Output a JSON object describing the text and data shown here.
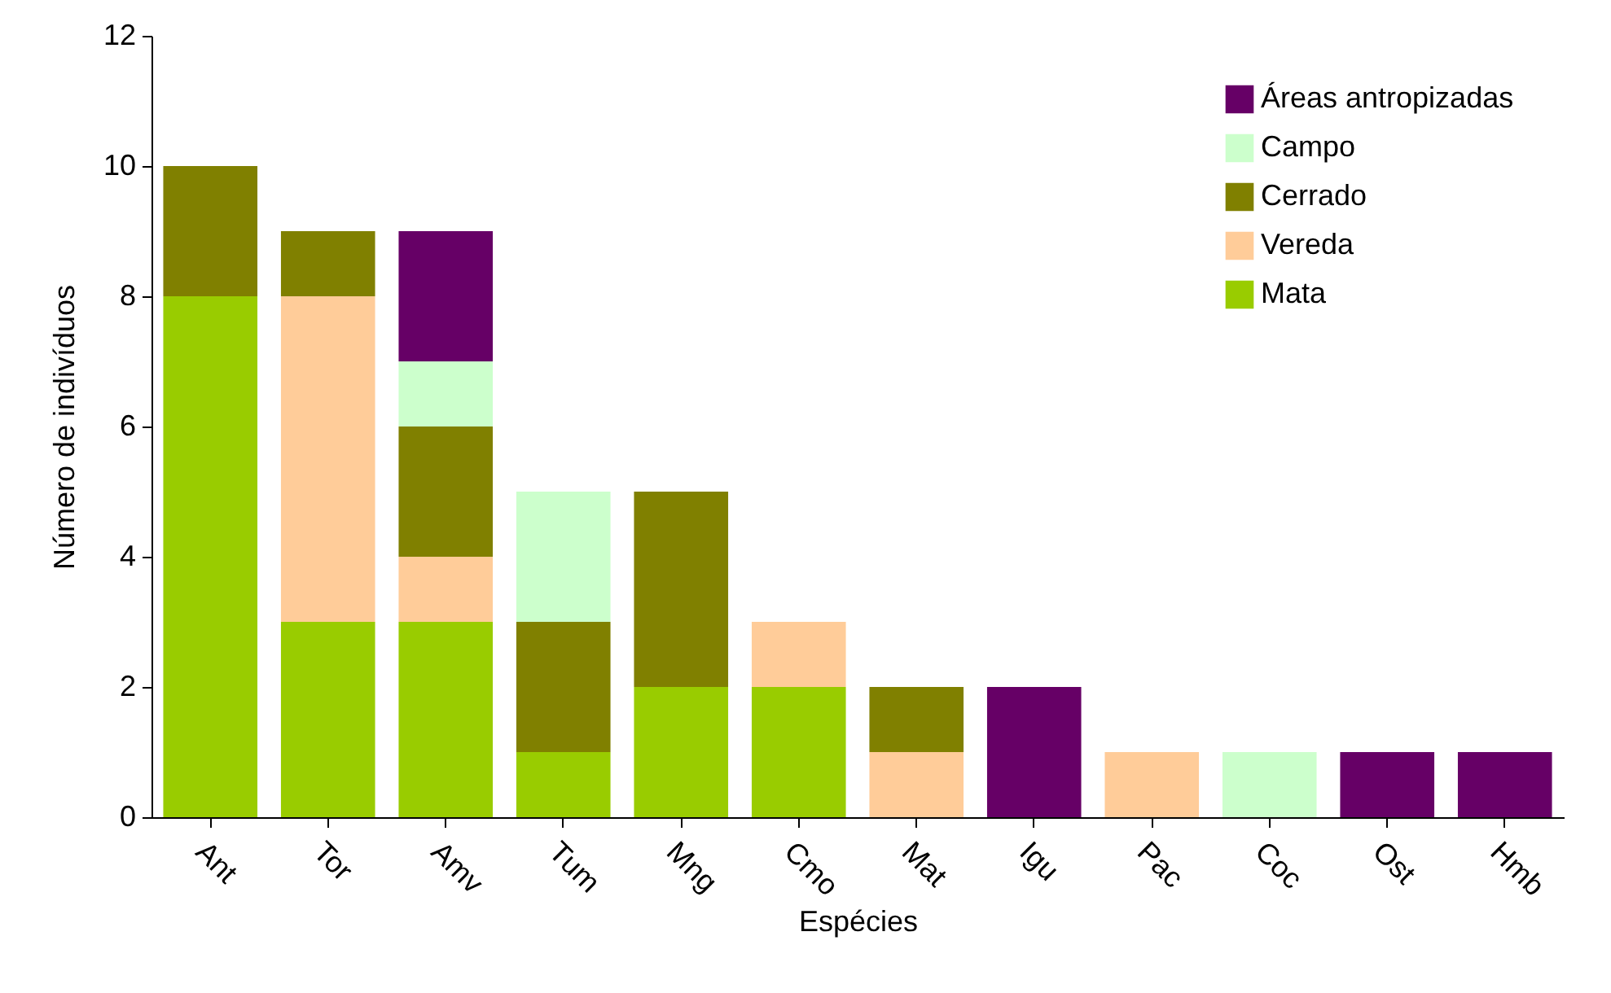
{
  "chart_data": {
    "type": "bar",
    "stacked": true,
    "xlabel": "Espécies",
    "ylabel": "Número de indivíduos",
    "categories": [
      "Ant",
      "Tor",
      "Amv",
      "Tum",
      "Mng",
      "Cmo",
      "Mat",
      "Igu",
      "Pac",
      "Coc",
      "Ost",
      "Hmb"
    ],
    "series": [
      {
        "name": "Mata",
        "color": "#99cc00",
        "values": [
          8,
          3,
          3,
          1,
          2,
          2,
          null,
          null,
          null,
          null,
          null,
          null
        ]
      },
      {
        "name": "Vereda",
        "color": "#ffcc99",
        "values": [
          null,
          5,
          1,
          null,
          null,
          1,
          1,
          null,
          1,
          null,
          null,
          null
        ]
      },
      {
        "name": "Cerrado",
        "color": "#808000",
        "values": [
          2,
          1,
          2,
          2,
          3,
          null,
          1,
          null,
          null,
          null,
          null,
          null
        ]
      },
      {
        "name": "Campo",
        "color": "#ccffcc",
        "values": [
          null,
          null,
          1,
          2,
          null,
          null,
          null,
          null,
          null,
          1,
          null,
          null
        ]
      },
      {
        "name": "Áreas antropizadas",
        "color": "#660066",
        "values": [
          null,
          null,
          2,
          null,
          null,
          null,
          null,
          2,
          null,
          null,
          1,
          1
        ]
      }
    ],
    "ylim": [
      0,
      12
    ],
    "yticks": [
      0,
      2,
      4,
      6,
      8,
      10,
      12
    ],
    "grid": false,
    "legend": "top right"
  }
}
